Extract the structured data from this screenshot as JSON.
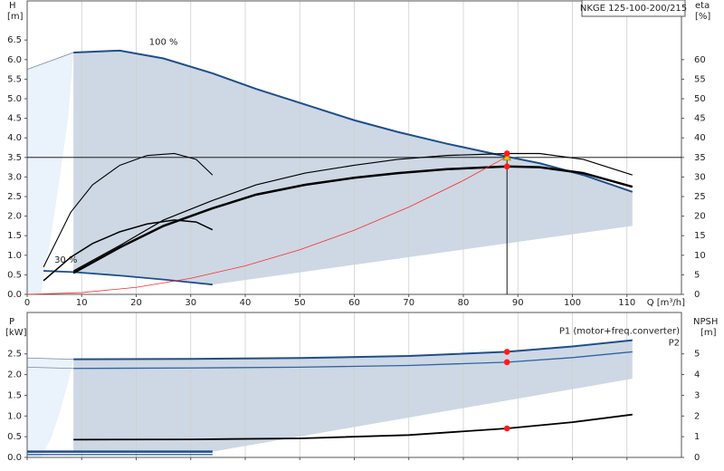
{
  "chart_data": [
    {
      "type": "line",
      "title": "NKGE 125-100-200/215",
      "ylabel": "H",
      "yunit": "[m]",
      "y2label": "eta",
      "y2unit": "[%]",
      "xlabel": "Q [m³/h]",
      "xlim": [
        0,
        120
      ],
      "xticks": [
        0,
        10,
        20,
        30,
        40,
        50,
        60,
        70,
        80,
        90,
        100,
        110
      ],
      "ylim": [
        0,
        7.5
      ],
      "yticks": [
        {
          "value": 0,
          "label": "0.0"
        },
        0.5,
        {
          "value": 1,
          "label": "1.0"
        },
        1.5,
        {
          "value": 2,
          "label": "2.0"
        },
        2.5,
        {
          "value": 3,
          "label": "3.0"
        },
        3.5,
        {
          "value": 4,
          "label": "4.0"
        },
        4.5,
        {
          "value": 5,
          "label": "5.0"
        },
        5.5,
        {
          "value": 6,
          "label": "6.0"
        },
        6.5
      ],
      "y2lim": [
        0,
        75
      ],
      "y2ticks": [
        0,
        5,
        10,
        15,
        20,
        25,
        30,
        35,
        40,
        45,
        50,
        55,
        60
      ],
      "grid": true,
      "areas": [
        {
          "color": "#eaf2fb",
          "x": [
            0,
            0,
            8.5,
            7.5,
            6,
            4.5,
            2.5
          ],
          "values": [
            0,
            5.75,
            6.18,
            4.5,
            3.0,
            1.6,
            0
          ]
        },
        {
          "color": "#cdd8e4",
          "x": [
            8.5,
            17,
            25,
            34,
            42,
            51,
            60,
            68,
            77,
            88,
            94,
            102,
            111,
            111,
            34,
            25,
            17,
            8.5
          ],
          "values": [
            6.18,
            6.23,
            6.03,
            5.65,
            5.25,
            4.85,
            4.45,
            4.15,
            3.85,
            3.52,
            3.35,
            3.05,
            2.62,
            1.75,
            0.25,
            0.38,
            0.48,
            0.57
          ]
        }
      ],
      "series": [
        {
          "name": "100 %",
          "color": "#1f4e8c",
          "x": [
            8.5,
            17,
            25,
            34,
            42,
            51,
            60,
            68,
            77,
            88,
            94,
            102,
            111
          ],
          "values": [
            6.18,
            6.23,
            6.03,
            5.65,
            5.25,
            4.85,
            4.45,
            4.15,
            3.85,
            3.52,
            3.35,
            3.05,
            2.62
          ]
        },
        {
          "name": "30 %",
          "color": "#1f4e8c",
          "x": [
            3,
            8.5,
            17,
            25,
            34
          ],
          "values": [
            0.6,
            0.57,
            0.48,
            0.38,
            0.25
          ]
        },
        {
          "color": "#7a8a9a",
          "x": [
            0,
            8.5
          ],
          "values": [
            5.75,
            6.18
          ]
        },
        {
          "color": "#000000",
          "axis": "y2",
          "x": [
            8.5,
            17,
            25,
            34,
            42,
            51,
            60,
            68,
            77,
            88,
            94,
            102,
            111
          ],
          "values": [
            6,
            12.5,
            19,
            24,
            28,
            31,
            33,
            34.5,
            35.5,
            36,
            36,
            34.5,
            30.5
          ]
        },
        {
          "color": "#000000",
          "axis": "y2",
          "x": [
            8.5,
            17,
            25,
            34,
            42,
            51,
            60,
            68,
            77,
            88,
            94,
            102,
            111
          ],
          "values": [
            5.5,
            12,
            17.5,
            22,
            25.5,
            28,
            29.8,
            31,
            32,
            32.7,
            32.5,
            31,
            27.5
          ]
        },
        {
          "color": "#000000",
          "axis": "y2",
          "x": [
            3,
            8,
            12,
            17,
            22,
            27,
            31,
            34
          ],
          "values": [
            7,
            21,
            28,
            33,
            35.5,
            36,
            34.5,
            30.5
          ]
        },
        {
          "color": "#000000",
          "axis": "y2",
          "x": [
            3,
            8,
            12,
            17,
            22,
            27,
            31,
            34
          ],
          "values": [
            3.5,
            9.5,
            13,
            16,
            18,
            19,
            18.5,
            16.5
          ]
        },
        {
          "color": "#ff2a2a",
          "x": [
            0,
            10,
            20,
            30,
            40,
            50,
            60,
            70,
            80,
            88
          ],
          "values": [
            0,
            0.045,
            0.18,
            0.41,
            0.73,
            1.14,
            1.64,
            2.23,
            2.91,
            3.52
          ]
        }
      ],
      "duty_point": {
        "x": 88,
        "value": 3.5,
        "color": "#f5c400"
      },
      "points": [
        {
          "x": 88,
          "value": 36,
          "axis": "y2",
          "color": "#ff1a1a"
        },
        {
          "x": 88,
          "value": 32.7,
          "axis": "y2",
          "color": "#ff1a1a"
        }
      ]
    },
    {
      "type": "line",
      "ylabel": "P",
      "yunit": "[kW]",
      "y2label": "NPSH",
      "y2unit": "[m]",
      "xlim": [
        0,
        120
      ],
      "xticks": [
        0,
        10,
        20,
        30,
        40,
        50,
        60,
        70,
        80,
        90,
        100,
        110
      ],
      "ylim": [
        0,
        3.5
      ],
      "yticks": [
        {
          "value": 0,
          "label": "0.0"
        },
        0.5,
        {
          "value": 1,
          "label": "1.0"
        },
        1.5,
        {
          "value": 2,
          "label": "2.0"
        },
        2.5
      ],
      "y2lim": [
        0,
        7
      ],
      "y2ticks": [
        0,
        1,
        2,
        3,
        4,
        5
      ],
      "grid": true,
      "areas": [
        {
          "color": "#eaf2fb",
          "x": [
            0,
            0,
            8.5,
            7.5,
            6,
            4.5,
            2.5
          ],
          "values": [
            0,
            2.4,
            2.37,
            1.8,
            1.1,
            0.5,
            0
          ]
        },
        {
          "color": "#cdd8e4",
          "x": [
            8.5,
            30,
            50,
            70,
            88,
            100,
            111,
            111,
            34,
            8.5
          ],
          "values": [
            2.37,
            2.38,
            2.4,
            2.45,
            2.55,
            2.68,
            2.83,
            1.9,
            0.14,
            0.14
          ]
        }
      ],
      "series": [
        {
          "name": "P1 (motor+freq.converter)",
          "color": "#1f4e8c",
          "x": [
            8.5,
            30,
            50,
            70,
            88,
            100,
            111
          ],
          "values": [
            2.37,
            2.38,
            2.4,
            2.45,
            2.55,
            2.68,
            2.83
          ]
        },
        {
          "name": "P2",
          "color": "#2f63a6",
          "x": [
            8.5,
            30,
            50,
            70,
            88,
            100,
            111
          ],
          "values": [
            2.15,
            2.16,
            2.18,
            2.22,
            2.3,
            2.41,
            2.55
          ]
        },
        {
          "color": "#7a8a9a",
          "x": [
            0,
            8.5
          ],
          "values": [
            2.4,
            2.37
          ]
        },
        {
          "color": "#7a8a9a",
          "x": [
            0,
            8.5
          ],
          "values": [
            2.18,
            2.15
          ]
        },
        {
          "color": "#1f4e8c",
          "x": [
            0,
            34
          ],
          "values": [
            0.14,
            0.14
          ]
        },
        {
          "color": "#2f63a6",
          "x": [
            0,
            34
          ],
          "values": [
            0.07,
            0.07
          ]
        },
        {
          "color": "#000000",
          "axis": "y2",
          "x": [
            8.5,
            30,
            50,
            70,
            88,
            100,
            111
          ],
          "values": [
            0.86,
            0.87,
            0.92,
            1.08,
            1.4,
            1.7,
            2.07
          ]
        }
      ],
      "points": [
        {
          "x": 88,
          "value": 2.55,
          "color": "#ff1a1a"
        },
        {
          "x": 88,
          "value": 2.3,
          "color": "#ff1a1a"
        },
        {
          "x": 88,
          "value": 1.4,
          "axis": "y2",
          "color": "#ff1a1a"
        }
      ]
    }
  ]
}
